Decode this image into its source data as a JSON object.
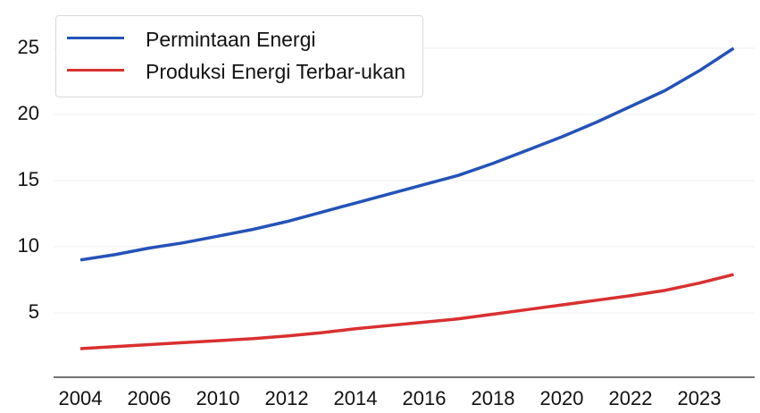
{
  "chart_data": {
    "type": "line",
    "categories": [
      "2004",
      null,
      "2006",
      null,
      "2010",
      null,
      "2012",
      null,
      "2014",
      null,
      "2016",
      null,
      "2018",
      null,
      "2020",
      null,
      "2022",
      null,
      "2023",
      null
    ],
    "series": [
      {
        "name": "Permintaan Energi",
        "color": "#2453b8",
        "values": [
          9.0,
          9.4,
          9.9,
          10.3,
          10.8,
          11.3,
          11.9,
          12.6,
          13.3,
          14.0,
          14.7,
          15.4,
          16.3,
          17.3,
          18.3,
          19.4,
          20.6,
          21.8,
          23.3,
          25.0
        ]
      },
      {
        "name": "Produksi Energi Terbar-ukan",
        "color": "#d93030",
        "values": [
          2.3,
          2.45,
          2.6,
          2.75,
          2.9,
          3.05,
          3.25,
          3.5,
          3.8,
          4.05,
          4.3,
          4.55,
          4.9,
          5.25,
          5.6,
          5.95,
          6.3,
          6.7,
          7.25,
          7.9
        ]
      }
    ],
    "ylim": [
      0,
      27
    ],
    "yticks": [
      5,
      10,
      15,
      20,
      25
    ],
    "grid": true,
    "legend": "upper left"
  }
}
